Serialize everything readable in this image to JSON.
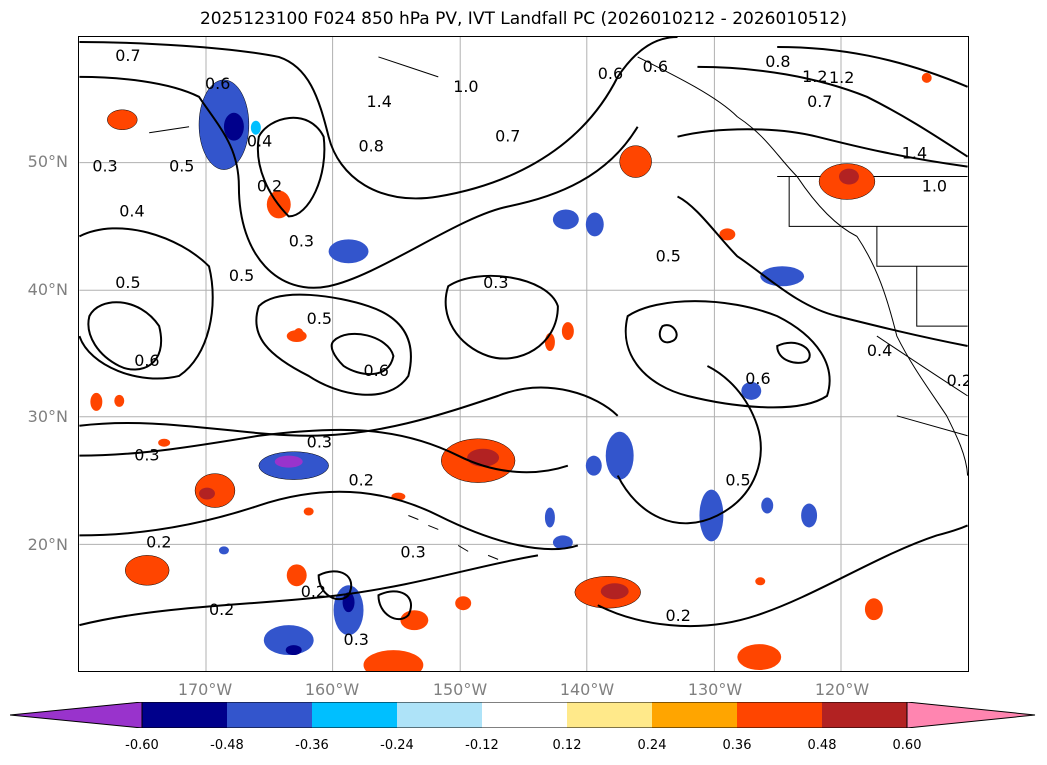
{
  "title": "2025123100 F024 850 hPa PV, IVT Landfall PC (2026010212 - 2026010512)",
  "map": {
    "lat_labels": [
      "50°N",
      "40°N",
      "30°N",
      "20°N"
    ],
    "lon_labels": [
      "170°W",
      "160°W",
      "150°W",
      "140°W",
      "130°W",
      "120°W"
    ],
    "contour_labels": [
      "0.7",
      "0.6",
      "1.4",
      "1.2",
      "1.0",
      "0.8",
      "0.4",
      "0.2",
      "0.3",
      "0.5",
      "0.3",
      "0.5",
      "0.4",
      "0.5",
      "0.6",
      "0.3",
      "0.5",
      "0.6",
      "0.6",
      "0.7",
      "0.6",
      "0.8",
      "1.2",
      "0.7",
      "1.4",
      "1.0",
      "0.5",
      "0.6",
      "0.4",
      "0.2",
      "0.3",
      "0.3",
      "0.2",
      "0.2",
      "0.3",
      "0.2",
      "0.2",
      "0.3",
      "0.2",
      "0.5"
    ]
  },
  "colorbar": {
    "ticks": [
      "-0.60",
      "-0.48",
      "-0.36",
      "-0.24",
      "-0.12",
      "0.12",
      "0.24",
      "0.36",
      "0.48",
      "0.60"
    ],
    "colors": [
      "#9933cc",
      "#00008b",
      "#3355cc",
      "#00bfff",
      "#aee3f8",
      "#ffffff",
      "#ffe98a",
      "#ffa500",
      "#ff4500",
      "#b22222",
      "#ff85b0"
    ]
  }
}
